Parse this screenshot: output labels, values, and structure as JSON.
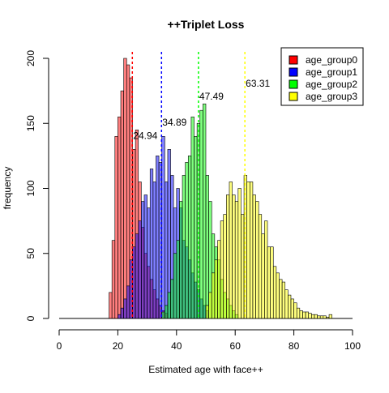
{
  "chart_data": {
    "type": "histogram",
    "title": "++Triplet Loss",
    "xlabel": "Estimated age with face++",
    "ylabel": "frequency",
    "xlim": [
      0,
      100
    ],
    "ylim": [
      0,
      200
    ],
    "x_ticks": [
      "0",
      "20",
      "40",
      "60",
      "80",
      "100"
    ],
    "y_ticks": [
      "0",
      "50",
      "100",
      "150",
      "200"
    ],
    "bin_width": 1,
    "series": [
      {
        "name": "age_group0",
        "color": "#ff0000",
        "mean": 24.94,
        "mean_label": "24.94",
        "x": [
          17,
          18,
          19,
          20,
          21,
          22,
          23,
          24,
          25,
          26,
          27,
          28,
          29,
          30,
          31,
          32,
          33,
          34,
          35,
          36
        ],
        "values": [
          20,
          60,
          140,
          155,
          175,
          200,
          195,
          185,
          130,
          145,
          105,
          70,
          50,
          40,
          30,
          22,
          15,
          10,
          6,
          4
        ]
      },
      {
        "name": "age_group1",
        "color": "#0000ff",
        "mean": 34.89,
        "mean_label": "34.89",
        "x": [
          20,
          21,
          22,
          23,
          24,
          25,
          26,
          27,
          28,
          29,
          30,
          31,
          32,
          33,
          34,
          35,
          36,
          37,
          38,
          39,
          40,
          41,
          42,
          43,
          44,
          45,
          46,
          47,
          48,
          49,
          50
        ],
        "values": [
          3,
          8,
          15,
          25,
          45,
          55,
          65,
          75,
          90,
          95,
          85,
          115,
          105,
          125,
          120,
          140,
          105,
          130,
          110,
          85,
          100,
          85,
          60,
          55,
          45,
          35,
          28,
          22,
          15,
          10,
          6
        ]
      },
      {
        "name": "age_group2",
        "color": "#00ff00",
        "mean": 47.49,
        "mean_label": "47.49",
        "x": [
          35,
          36,
          37,
          38,
          39,
          40,
          41,
          42,
          43,
          44,
          45,
          46,
          47,
          48,
          49,
          50,
          51,
          52,
          53,
          54,
          55,
          56,
          57,
          58,
          59,
          60
        ],
        "values": [
          5,
          10,
          20,
          30,
          50,
          60,
          90,
          110,
          120,
          125,
          155,
          140,
          150,
          160,
          165,
          110,
          90,
          65,
          55,
          45,
          30,
          20,
          15,
          10,
          6,
          3
        ]
      },
      {
        "name": "age_group3",
        "color": "#ffff00",
        "mean": 63.31,
        "mean_label": "63.31",
        "x": [
          50,
          51,
          52,
          53,
          54,
          55,
          56,
          57,
          58,
          59,
          60,
          61,
          62,
          63,
          64,
          65,
          66,
          67,
          68,
          69,
          70,
          71,
          72,
          73,
          74,
          75,
          76,
          77,
          78,
          79,
          80,
          81,
          82,
          83,
          84,
          85,
          86,
          87,
          88,
          89,
          90,
          91,
          92
        ],
        "values": [
          10,
          20,
          35,
          45,
          60,
          75,
          80,
          95,
          105,
          95,
          90,
          100,
          80,
          110,
          105,
          105,
          95,
          90,
          80,
          65,
          75,
          55,
          55,
          40,
          35,
          30,
          28,
          22,
          18,
          15,
          12,
          8,
          6,
          5,
          5,
          4,
          3,
          3,
          2,
          2,
          2,
          1,
          3
        ]
      }
    ],
    "legend": {
      "placement": "top-right"
    }
  }
}
